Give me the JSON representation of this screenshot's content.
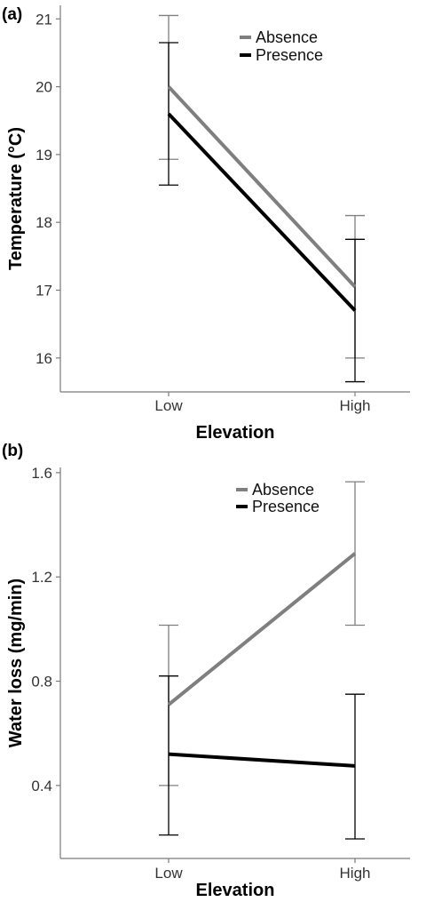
{
  "chart_data": [
    {
      "type": "line",
      "panel_label": "(a)",
      "title": "",
      "xlabel": "Elevation",
      "ylabel": "Temperature (°C)",
      "categories": [
        "Low",
        "High"
      ],
      "ylim": [
        15.5,
        21.2
      ],
      "yticks": [
        16,
        17,
        18,
        19,
        20,
        21
      ],
      "grid": false,
      "legend_position": "top-right",
      "series": [
        {
          "name": "Absence",
          "color": "#7f7f7f",
          "values": [
            20.0,
            17.05
          ],
          "err_low": [
            18.93,
            16.0
          ],
          "err_high": [
            21.05,
            18.1
          ]
        },
        {
          "name": "Presence",
          "color": "#000000",
          "values": [
            19.6,
            16.7
          ],
          "err_low": [
            18.55,
            15.65
          ],
          "err_high": [
            20.65,
            17.75
          ]
        }
      ]
    },
    {
      "type": "line",
      "panel_label": "(b)",
      "title": "",
      "xlabel": "Elevation",
      "ylabel": "Water loss (mg/min)",
      "categories": [
        "Low",
        "High"
      ],
      "ylim": [
        0.12,
        1.62
      ],
      "yticks": [
        0.4,
        0.8,
        1.2,
        1.6
      ],
      "ytick_labels": [
        "0.4",
        "0.8",
        "1.2",
        "1.6"
      ],
      "grid": false,
      "legend_position": "top-right",
      "series": [
        {
          "name": "Absence",
          "color": "#7f7f7f",
          "values": [
            0.71,
            1.29
          ],
          "err_low": [
            0.4,
            1.015
          ],
          "err_high": [
            1.015,
            1.565
          ]
        },
        {
          "name": "Presence",
          "color": "#000000",
          "values": [
            0.52,
            0.475
          ],
          "err_low": [
            0.21,
            0.195
          ],
          "err_high": [
            0.82,
            0.75
          ]
        }
      ]
    }
  ]
}
